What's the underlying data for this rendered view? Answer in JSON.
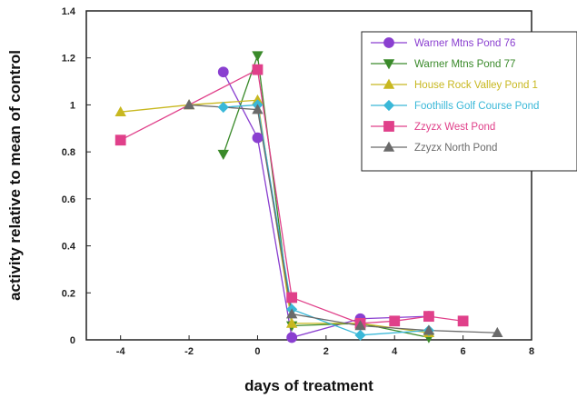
{
  "chart_data": {
    "type": "line",
    "title": "",
    "xlabel": "days of treatment",
    "ylabel": "activity relative to mean of control",
    "xlim": [
      -5,
      8
    ],
    "ylim": [
      0,
      1.4
    ],
    "xticks": [
      -4,
      -2,
      0,
      2,
      4,
      6,
      8
    ],
    "yticks": [
      0,
      0.2,
      0.4,
      0.6,
      0.8,
      1,
      1.2,
      1.4
    ],
    "ytick_labels": [
      "0",
      "0.2",
      "0.4",
      "0.6",
      "0.8",
      "1",
      "1.2",
      "1.4"
    ],
    "grid": false,
    "legend_position": "top-right",
    "series": [
      {
        "name": "Warner Mtns Pond 76",
        "color": "#8a3fd0",
        "marker": "circle",
        "x": [
          -1,
          0,
          1,
          3,
          5
        ],
        "y": [
          1.14,
          0.86,
          0.01,
          0.09,
          0.1
        ]
      },
      {
        "name": "Warner Mtns Pond 77",
        "color": "#3a8a2a",
        "marker": "triangle-down",
        "x": [
          -1,
          0,
          1,
          3,
          5
        ],
        "y": [
          0.79,
          1.21,
          0.06,
          0.07,
          0.01
        ]
      },
      {
        "name": "House Rock Valley Pond 1",
        "color": "#c8b820",
        "marker": "triangle-up",
        "x": [
          -4,
          -2,
          0,
          1,
          3,
          5
        ],
        "y": [
          0.97,
          1.0,
          1.02,
          0.07,
          0.07,
          0.03
        ]
      },
      {
        "name": "Foothills Golf Course Pond",
        "color": "#3ab8d8",
        "marker": "diamond",
        "x": [
          -1,
          0,
          1,
          3,
          5
        ],
        "y": [
          0.99,
          1.0,
          0.13,
          0.02,
          0.04
        ]
      },
      {
        "name": "Zzyzx West Pond",
        "color": "#e0408a",
        "marker": "square",
        "x": [
          -4,
          0,
          1,
          3,
          4,
          5,
          6
        ],
        "y": [
          0.85,
          1.15,
          0.18,
          0.07,
          0.08,
          0.1,
          0.08
        ]
      },
      {
        "name": "Zzyzx North Pond",
        "color": "#6a6a6a",
        "marker": "triangle-up",
        "x": [
          -2,
          0,
          1,
          3,
          5,
          7
        ],
        "y": [
          1.0,
          0.98,
          0.11,
          0.06,
          0.04,
          0.03
        ]
      }
    ]
  }
}
